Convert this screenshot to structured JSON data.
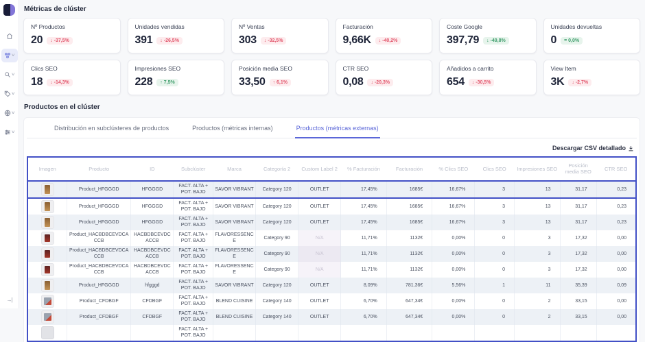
{
  "sidebar": {
    "items": [
      {
        "name": "home",
        "active": false,
        "chevron": false
      },
      {
        "name": "clusters",
        "active": true,
        "chevron": true
      },
      {
        "name": "search",
        "active": false,
        "chevron": true
      },
      {
        "name": "tags",
        "active": false,
        "chevron": true
      },
      {
        "name": "world",
        "active": false,
        "chevron": true
      },
      {
        "name": "filters",
        "active": false,
        "chevron": true
      }
    ],
    "collapse_icon": "→|"
  },
  "colors": {
    "accent": "#5b67d8",
    "table_border": "#4250c6",
    "badge_red_text": "#e2556b",
    "badge_green_text": "#3f9e6c"
  },
  "metrics": {
    "title": "Métricas de clúster",
    "cards": [
      {
        "label": "Nº Productos",
        "value": "20",
        "icon": "↓",
        "delta": "-37,5%",
        "tone": "red"
      },
      {
        "label": "Unidades vendidas",
        "value": "391",
        "icon": "↓",
        "delta": "-26,5%",
        "tone": "red"
      },
      {
        "label": "Nº Ventas",
        "value": "303",
        "icon": "↓",
        "delta": "-32,5%",
        "tone": "red"
      },
      {
        "label": "Facturación",
        "value": "9,66K",
        "icon": "↓",
        "delta": "-40,2%",
        "tone": "red"
      },
      {
        "label": "Coste Google",
        "value": "397,79",
        "icon": "↓",
        "delta": "-49,8%",
        "tone": "green"
      },
      {
        "label": "Unidades devueltas",
        "value": "0",
        "icon": "=",
        "delta": "0,0%",
        "tone": "green"
      },
      {
        "label": "Clics SEO",
        "value": "18",
        "icon": "↓",
        "delta": "-14,3%",
        "tone": "red"
      },
      {
        "label": "Impresiones SEO",
        "value": "228",
        "icon": "↑",
        "delta": "7,5%",
        "tone": "green"
      },
      {
        "label": "Posición media SEO",
        "value": "33,50",
        "icon": "↑",
        "delta": "6,1%",
        "tone": "red"
      },
      {
        "label": "CTR SEO",
        "value": "0,08",
        "icon": "↓",
        "delta": "-20,3%",
        "tone": "red"
      },
      {
        "label": "Añadidos a carrito",
        "value": "654",
        "icon": "↓",
        "delta": "-30,5%",
        "tone": "red"
      },
      {
        "label": "View Item",
        "value": "3K",
        "icon": "↓",
        "delta": "-2,7%",
        "tone": "red"
      }
    ]
  },
  "products": {
    "title": "Productos en el clúster",
    "tabs": [
      {
        "label": "Distribución en subclústeres de productos",
        "active": false
      },
      {
        "label": "Productos (métricas internas)",
        "active": false
      },
      {
        "label": "Productos (métricas externas)",
        "active": true
      }
    ],
    "download_label": "Descargar CSV detallado",
    "table": {
      "columns": [
        "Imagen",
        "Producto",
        "ID",
        "Subclúster",
        "Marca",
        "Categoría 2",
        "Custom Label 2",
        "% Facturación",
        "Facturación",
        "% Clics SEO",
        "Clics SEO",
        "Impresiones SEO",
        "Posición media SEO",
        "CTR SEO"
      ],
      "rows": [
        {
          "image": "tan-bottle",
          "producto": "Product_HFGGGD",
          "id": "HFGGGD",
          "subcluster": "FACT. ALTA + POT. BAJO",
          "marca": "SAVOR VIBRANT",
          "categoria2": "Category 120",
          "custom_label2": "OUTLET",
          "pct_facturacion": "17,45%",
          "facturacion": "1685€",
          "pct_clics_seo": "16,67%",
          "clics_seo": "3",
          "impresiones_seo": "13",
          "posicion_media_seo": "31,17",
          "ctr_seo": "0,23",
          "selected": true
        },
        {
          "image": "tan-bottle",
          "producto": "Product_HFGGGD",
          "id": "HFGGGD",
          "subcluster": "FACT. ALTA + POT. BAJO",
          "marca": "SAVOR VIBRANT",
          "categoria2": "Category 120",
          "custom_label2": "OUTLET",
          "pct_facturacion": "17,45%",
          "facturacion": "1685€",
          "pct_clics_seo": "16,67%",
          "clics_seo": "3",
          "impresiones_seo": "13",
          "posicion_media_seo": "31,17",
          "ctr_seo": "0,23",
          "selected": false
        },
        {
          "image": "tan-bottle",
          "producto": "Product_HFGGGD",
          "id": "HFGGGD",
          "subcluster": "FACT. ALTA + POT. BAJO",
          "marca": "SAVOR VIBRANT",
          "categoria2": "Category 120",
          "custom_label2": "OUTLET",
          "pct_facturacion": "17,45%",
          "facturacion": "1685€",
          "pct_clics_seo": "16,67%",
          "clics_seo": "3",
          "impresiones_seo": "13",
          "posicion_media_seo": "31,17",
          "ctr_seo": "0,23",
          "selected": false
        },
        {
          "image": "red-pack",
          "producto": "Product_HACBDBCEVDCACCB",
          "id": "HACBDBCEVDCACCB",
          "subcluster": "FACT. ALTA + POT. BAJO",
          "marca": "FLAVORESSENCE",
          "categoria2": "Category 90",
          "custom_label2": "N/A",
          "pct_facturacion": "11,71%",
          "facturacion": "1132€",
          "pct_clics_seo": "0,00%",
          "clics_seo": "0",
          "impresiones_seo": "3",
          "posicion_media_seo": "17,32",
          "ctr_seo": "0,00",
          "selected": false
        },
        {
          "image": "red-pack",
          "producto": "Product_HACBDBCEVDCACCB",
          "id": "HACBDBCEVDCACCB",
          "subcluster": "FACT. ALTA + POT. BAJO",
          "marca": "FLAVORESSENCE",
          "categoria2": "Category 90",
          "custom_label2": "N/A",
          "pct_facturacion": "11,71%",
          "facturacion": "1132€",
          "pct_clics_seo": "0,00%",
          "clics_seo": "0",
          "impresiones_seo": "3",
          "posicion_media_seo": "17,32",
          "ctr_seo": "0,00",
          "selected": false
        },
        {
          "image": "red-pack",
          "producto": "Product_HACBDBCEVDCACCB",
          "id": "HACBDBCEVDCACCB",
          "subcluster": "FACT. ALTA + POT. BAJO",
          "marca": "FLAVORESSENCE",
          "categoria2": "Category 90",
          "custom_label2": "N/A",
          "pct_facturacion": "11,71%",
          "facturacion": "1132€",
          "pct_clics_seo": "0,00%",
          "clics_seo": "0",
          "impresiones_seo": "3",
          "posicion_media_seo": "17,32",
          "ctr_seo": "0,00",
          "selected": false
        },
        {
          "image": "tan-bottle",
          "producto": "Product_HFGGGD",
          "id": "hfgggd",
          "subcluster": "FACT. ALTA + POT. BAJO",
          "marca": "SAVOR VIBRANT",
          "categoria2": "Category 120",
          "custom_label2": "OUTLET",
          "pct_facturacion": "8,09%",
          "facturacion": "781,36€",
          "pct_clics_seo": "5,56%",
          "clics_seo": "1",
          "impresiones_seo": "11",
          "posicion_media_seo": "35,39",
          "ctr_seo": "0,09",
          "selected": false
        },
        {
          "image": "gray-pack",
          "producto": "Product_CFDBGF",
          "id": "CFDBGF",
          "subcluster": "FACT. ALTA + POT. BAJO",
          "marca": "BLEND CUISINE",
          "categoria2": "Category 140",
          "custom_label2": "OUTLET",
          "pct_facturacion": "6,70%",
          "facturacion": "647,34€",
          "pct_clics_seo": "0,00%",
          "clics_seo": "0",
          "impresiones_seo": "2",
          "posicion_media_seo": "33,15",
          "ctr_seo": "0,00",
          "selected": false
        },
        {
          "image": "gray-pack",
          "producto": "Product_CFDBGF",
          "id": "CFDBGF",
          "subcluster": "FACT. ALTA + POT. BAJO",
          "marca": "BLEND CUISINE",
          "categoria2": "Category 140",
          "custom_label2": "OUTLET",
          "pct_facturacion": "6,70%",
          "facturacion": "647,34€",
          "pct_clics_seo": "0,00%",
          "clics_seo": "0",
          "impresiones_seo": "2",
          "posicion_media_seo": "33,15",
          "ctr_seo": "0,00",
          "selected": false
        },
        {
          "image": "placeholder",
          "producto": "",
          "id": "",
          "subcluster": "FACT. ALTA + POT. BAJO",
          "marca": "",
          "categoria2": "",
          "custom_label2": "",
          "pct_facturacion": "",
          "facturacion": "",
          "pct_clics_seo": "",
          "clics_seo": "",
          "impresiones_seo": "",
          "posicion_media_seo": "",
          "ctr_seo": "",
          "selected": false
        }
      ]
    }
  }
}
